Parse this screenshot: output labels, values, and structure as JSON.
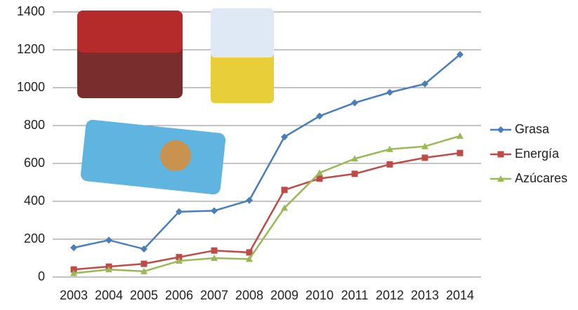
{
  "chart_data": {
    "type": "line",
    "categories": [
      "2003",
      "2004",
      "2005",
      "2006",
      "2007",
      "2008",
      "2009",
      "2010",
      "2011",
      "2012",
      "2013",
      "2014"
    ],
    "series": [
      {
        "name": "Grasa",
        "color": "#4a7ebb",
        "marker": "diamond",
        "values": [
          155,
          195,
          148,
          345,
          350,
          405,
          740,
          850,
          920,
          975,
          1020,
          1175
        ]
      },
      {
        "name": "Energía",
        "color": "#be4b48",
        "marker": "square",
        "values": [
          40,
          55,
          70,
          105,
          140,
          130,
          460,
          520,
          545,
          595,
          630,
          655
        ]
      },
      {
        "name": "Azúcares",
        "color": "#98b954",
        "marker": "triangle",
        "values": [
          20,
          40,
          30,
          85,
          100,
          95,
          365,
          550,
          625,
          675,
          690,
          745
        ]
      }
    ],
    "ylim": [
      0,
      1400
    ],
    "yticks": [
      0,
      200,
      400,
      600,
      800,
      1000,
      1200,
      1400
    ],
    "grid": true,
    "legend": "right"
  }
}
